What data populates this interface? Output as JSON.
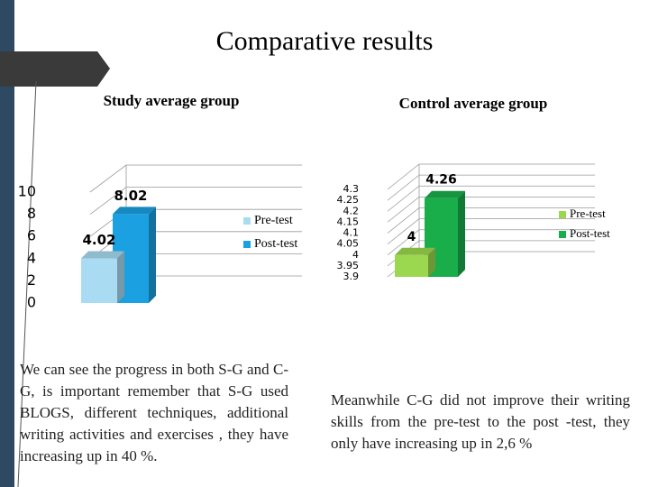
{
  "title": "Comparative results",
  "chart_data": [
    {
      "type": "bar",
      "title": "Study average group",
      "categories": [
        null
      ],
      "series": [
        {
          "name": "Pre-test",
          "color": "#a9dcf3",
          "values": [
            4.02
          ]
        },
        {
          "name": "Post-test",
          "color": "#1ba1e2",
          "values": [
            8.02
          ]
        }
      ],
      "ylim": [
        0,
        10
      ],
      "yticks": [
        0,
        2,
        4,
        6,
        8,
        10
      ],
      "grid": true,
      "legend": "right"
    },
    {
      "type": "bar",
      "title": "Control average group",
      "categories": [
        null
      ],
      "series": [
        {
          "name": "Pre-test",
          "color": "#9bd84f",
          "values": [
            4
          ]
        },
        {
          "name": "Post-test",
          "color": "#1aae4a",
          "values": [
            4.26
          ]
        }
      ],
      "ylim": [
        3.9,
        4.3
      ],
      "yticks": [
        3.9,
        3.95,
        4,
        4.05,
        4.1,
        4.15,
        4.2,
        4.25,
        4.3
      ],
      "grid": true,
      "legend": "right"
    }
  ],
  "notes": [
    "We can see the progress in both S-G and C-G, is important remember that S-G used BLOGS, different techniques, additional writing activities and exercises , they have increasing up in 40 %.",
    "Meanwhile C-G did not improve their writing skills from the pre-test to the post -test, they only have increasing up in 2,6 %"
  ]
}
